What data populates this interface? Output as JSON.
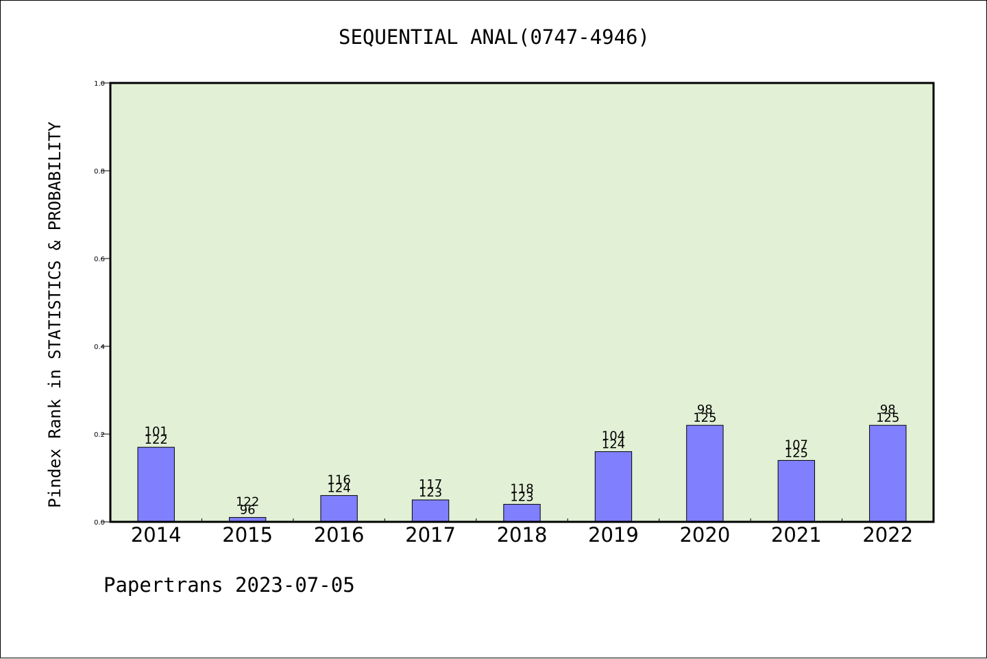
{
  "chart_data": {
    "type": "bar",
    "title": "SEQUENTIAL ANAL(0747-4946)",
    "xlabel": "",
    "ylabel": "Pindex Rank in STATISTICS & PROBABILITY",
    "ylim": [
      0,
      1.0
    ],
    "yticks": [
      "0.0",
      "0.2",
      "0.4",
      "0.6",
      "0.8",
      "1.0"
    ],
    "categories": [
      "2014",
      "2015",
      "2016",
      "2017",
      "2018",
      "2019",
      "2020",
      "2021",
      "2022"
    ],
    "values": [
      0.17,
      0.01,
      0.06,
      0.05,
      0.04,
      0.16,
      0.22,
      0.14,
      0.22
    ],
    "labels_top": [
      "101",
      "122",
      "116",
      "117",
      "118",
      "104",
      "98",
      "107",
      "98"
    ],
    "labels_bottom": [
      "122",
      "96",
      "124",
      "123",
      "123",
      "124",
      "125",
      "125",
      "125"
    ],
    "grid": false,
    "colors": {
      "plot_background": "#e2f0d6",
      "bar_fill": "#8080ff",
      "bar_stroke": "#000000",
      "axis": "#000000"
    }
  },
  "footer": "Papertrans 2023-07-05"
}
